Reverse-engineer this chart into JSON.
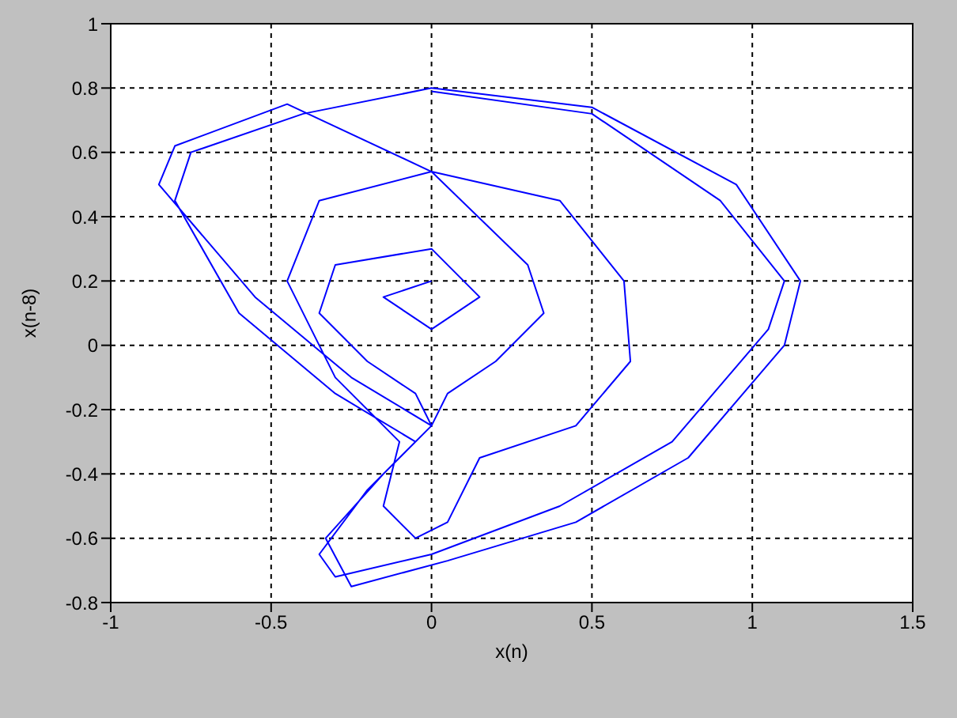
{
  "chart_data": {
    "type": "line",
    "xlabel": "x(n)",
    "ylabel": "x(n-8)",
    "xlim": [
      -1,
      1.5
    ],
    "xticks": [
      -1,
      -0.5,
      0,
      0.5,
      1,
      1.5
    ],
    "ylim": [
      -0.8,
      1
    ],
    "yticks": [
      -0.8,
      -0.6,
      -0.4,
      -0.2,
      0,
      0.2,
      0.4,
      0.6,
      0.8,
      1
    ],
    "grid": true,
    "marker": "none",
    "line_style": "solid",
    "series": [
      {
        "color": "#0000ff",
        "x": [
          0,
          0.5,
          0.9,
          1.1,
          1.05,
          0.75,
          0.4,
          0,
          -0.3,
          -0.35,
          -0.2,
          -0.05,
          -0.3,
          -0.6,
          -0.8,
          -0.75,
          -0.4,
          0,
          0.5,
          0.95,
          1.15,
          1.1,
          0.8,
          0.45,
          0.05,
          -0.25,
          -0.33,
          -0.15,
          0,
          -0.25,
          -0.55,
          -0.85,
          -0.8,
          -0.45,
          0,
          0.4,
          0.6,
          0.62,
          0.45,
          0.15,
          0.05,
          -0.05,
          -0.15,
          -0.1,
          -0.3,
          -0.45,
          -0.35,
          0,
          0.3,
          0.35,
          0.2,
          0.05,
          0,
          -0.05,
          -0.2,
          -0.35,
          -0.3,
          0,
          0.15,
          0,
          -0.15,
          0
        ],
        "values": [
          0.79,
          0.72,
          0.45,
          0.2,
          0.05,
          -0.3,
          -0.5,
          -0.65,
          -0.72,
          -0.65,
          -0.45,
          -0.3,
          -0.15,
          0.1,
          0.45,
          0.6,
          0.72,
          0.8,
          0.74,
          0.5,
          0.2,
          0.0,
          -0.35,
          -0.55,
          -0.67,
          -0.75,
          -0.6,
          -0.4,
          -0.25,
          -0.1,
          0.15,
          0.5,
          0.62,
          0.75,
          0.54,
          0.45,
          0.2,
          -0.05,
          -0.25,
          -0.35,
          -0.55,
          -0.6,
          -0.5,
          -0.3,
          -0.1,
          0.2,
          0.45,
          0.54,
          0.25,
          0.1,
          -0.05,
          -0.15,
          -0.25,
          -0.15,
          -0.05,
          0.1,
          0.25,
          0.3,
          0.15,
          0.05,
          0.15,
          0.2
        ]
      }
    ]
  }
}
